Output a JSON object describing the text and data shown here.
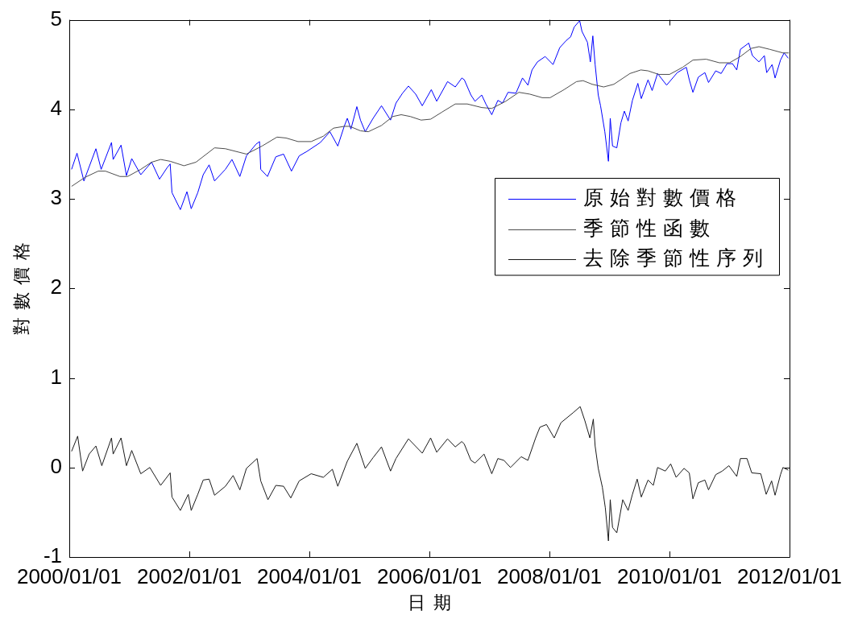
{
  "chart_data": {
    "type": "line",
    "xlabel": "日期",
    "ylabel": "對數價格",
    "legend": "right",
    "xlim": [
      "2000-01-01",
      "2012-01-01"
    ],
    "xticks": [
      {
        "value": "2000-01-01",
        "label": "2000/01/01"
      },
      {
        "value": "2002-01-01",
        "label": "2002/01/01"
      },
      {
        "value": "2004-01-01",
        "label": "2004/01/01"
      },
      {
        "value": "2006-01-01",
        "label": "2006/01/01"
      },
      {
        "value": "2008-01-01",
        "label": "2008/01/01"
      },
      {
        "value": "2010-01-01",
        "label": "2010/01/01"
      },
      {
        "value": "2012-01-01",
        "label": "2012/01/01"
      }
    ],
    "ylim": [
      -1,
      5
    ],
    "yticks": [
      -1,
      0,
      1,
      2,
      3,
      4,
      5
    ],
    "series": [
      {
        "name": "原始對數價格",
        "color": "#0000ff",
        "x": [
          "2000-01-15",
          "2000-02-17",
          "2000-03-30",
          "2000-06-11",
          "2000-07-13",
          "2000-09-14",
          "2000-09-24",
          "2000-11-11",
          "2000-12-14",
          "2001-01-15",
          "2001-03-11",
          "2001-05-16",
          "2001-07-03",
          "2001-08-19",
          "2001-09-06",
          "2001-09-17",
          "2001-11-07",
          "2001-12-17",
          "2002-01-12",
          "2002-02-21",
          "2002-03-26",
          "2002-05-01",
          "2002-06-03",
          "2002-08-08",
          "2002-09-17",
          "2002-11-04",
          "2002-12-14",
          "2003-02-10",
          "2003-03-04",
          "2003-03-11",
          "2003-04-21",
          "2003-06-11",
          "2003-07-28",
          "2003-09-14",
          "2003-10-31",
          "2003-12-17",
          "2004-03-08",
          "2004-05-05",
          "2004-06-22",
          "2004-07-31",
          "2004-08-19",
          "2004-09-10",
          "2004-10-16",
          "2004-11-07",
          "2004-12-06",
          "2005-01-23",
          "2005-03-15",
          "2005-05-09",
          "2005-06-11",
          "2005-07-21",
          "2005-08-26",
          "2005-10-09",
          "2005-11-18",
          "2006-01-12",
          "2006-02-14",
          "2006-04-21",
          "2006-06-07",
          "2006-07-17",
          "2006-08-01",
          "2006-09-10",
          "2006-10-05",
          "2006-11-15",
          "2006-12-10",
          "2007-01-15",
          "2007-02-21",
          "2007-03-22",
          "2007-04-24",
          "2007-06-11",
          "2007-07-21",
          "2007-08-23",
          "2007-09-17",
          "2007-10-20",
          "2007-12-06",
          "2008-01-23",
          "2008-03-04",
          "2008-04-13",
          "2008-05-09",
          "2008-05-31",
          "2008-07-03",
          "2008-07-17",
          "2008-08-19",
          "2008-09-06",
          "2008-09-21",
          "2008-10-05",
          "2008-10-24",
          "2008-11-07",
          "2008-12-03",
          "2008-12-25",
          "2009-01-05",
          "2009-01-19",
          "2009-02-14",
          "2009-03-11",
          "2009-04-01",
          "2009-04-24",
          "2009-05-20",
          "2009-06-22",
          "2009-07-13",
          "2009-08-23",
          "2009-09-17",
          "2009-10-20",
          "2009-12-14",
          "2010-02-17",
          "2010-04-13",
          "2010-05-01",
          "2010-05-23",
          "2010-06-25",
          "2010-08-04",
          "2010-08-26",
          "2010-10-09",
          "2010-11-11",
          "2010-12-17",
          "2011-01-19",
          "2011-02-14",
          "2011-03-08",
          "2011-04-28",
          "2011-05-20",
          "2011-06-29",
          "2011-08-01",
          "2011-08-15",
          "2011-09-17",
          "2011-10-05",
          "2011-11-07",
          "2011-11-29",
          "2011-12-25"
        ],
        "values": [
          3.33,
          3.51,
          3.2,
          3.56,
          3.33,
          3.63,
          3.44,
          3.6,
          3.26,
          3.45,
          3.27,
          3.41,
          3.22,
          3.35,
          3.39,
          3.07,
          2.88,
          3.08,
          2.89,
          3.07,
          3.27,
          3.38,
          3.2,
          3.33,
          3.44,
          3.25,
          3.48,
          3.61,
          3.64,
          3.33,
          3.25,
          3.47,
          3.5,
          3.31,
          3.48,
          3.53,
          3.63,
          3.75,
          3.59,
          3.81,
          3.9,
          3.78,
          4.03,
          3.88,
          3.75,
          3.9,
          4.04,
          3.88,
          4.07,
          4.18,
          4.26,
          4.17,
          4.04,
          4.22,
          4.09,
          4.31,
          4.25,
          4.35,
          4.33,
          4.16,
          4.09,
          4.16,
          4.06,
          3.94,
          4.1,
          4.07,
          4.19,
          4.18,
          4.35,
          4.27,
          4.44,
          4.53,
          4.59,
          4.5,
          4.69,
          4.77,
          4.81,
          4.92,
          4.99,
          4.87,
          4.75,
          4.53,
          4.82,
          4.5,
          4.16,
          4.04,
          3.75,
          3.42,
          3.9,
          3.59,
          3.57,
          3.85,
          3.98,
          3.87,
          4.1,
          4.29,
          4.12,
          4.33,
          4.21,
          4.4,
          4.27,
          4.41,
          4.47,
          4.33,
          4.19,
          4.36,
          4.41,
          4.3,
          4.43,
          4.4,
          4.51,
          4.51,
          4.44,
          4.67,
          4.74,
          4.6,
          4.53,
          4.6,
          4.41,
          4.5,
          4.35,
          4.55,
          4.63,
          4.57
        ]
      },
      {
        "name": "季節性函數",
        "color": "#4d4d4d",
        "x": [
          "2000-01-15",
          "2000-04-05",
          "2000-06-25",
          "2000-08-08",
          "2000-11-04",
          "2000-12-21",
          "2001-03-11",
          "2001-05-16",
          "2001-07-10",
          "2001-09-06",
          "2001-11-29",
          "2002-02-10",
          "2002-06-03",
          "2002-08-08",
          "2002-12-14",
          "2003-03-19",
          "2003-06-18",
          "2003-08-12",
          "2003-10-24",
          "2004-01-12",
          "2004-03-26",
          "2004-05-27",
          "2004-07-31",
          "2004-09-03",
          "2004-11-07",
          "2004-12-25",
          "2005-03-15",
          "2005-05-23",
          "2005-07-13",
          "2005-09-06",
          "2005-11-11",
          "2006-01-08",
          "2006-03-19",
          "2006-06-07",
          "2006-08-19",
          "2006-11-15",
          "2007-01-15",
          "2007-04-10",
          "2007-06-29",
          "2007-09-03",
          "2007-11-18",
          "2008-01-05",
          "2008-03-30",
          "2008-06-14",
          "2008-07-24",
          "2008-09-17",
          "2008-11-26",
          "2009-01-27",
          "2009-05-05",
          "2009-07-10",
          "2009-08-23",
          "2009-10-27",
          "2010-01-01",
          "2010-03-22",
          "2010-05-23",
          "2010-08-12",
          "2010-10-31",
          "2011-01-01",
          "2011-03-08",
          "2011-05-12",
          "2011-06-29",
          "2011-09-03",
          "2011-11-22",
          "2011-12-28"
        ],
        "values": [
          3.14,
          3.24,
          3.31,
          3.31,
          3.25,
          3.25,
          3.33,
          3.41,
          3.44,
          3.42,
          3.37,
          3.41,
          3.57,
          3.56,
          3.5,
          3.59,
          3.69,
          3.68,
          3.64,
          3.64,
          3.7,
          3.79,
          3.81,
          3.81,
          3.76,
          3.75,
          3.82,
          3.92,
          3.94,
          3.92,
          3.88,
          3.89,
          3.97,
          4.06,
          4.06,
          4.02,
          4.01,
          4.09,
          4.19,
          4.17,
          4.13,
          4.13,
          4.22,
          4.31,
          4.32,
          4.28,
          4.25,
          4.28,
          4.4,
          4.44,
          4.43,
          4.39,
          4.39,
          4.47,
          4.55,
          4.56,
          4.52,
          4.52,
          4.59,
          4.68,
          4.7,
          4.67,
          4.63,
          4.63
        ]
      },
      {
        "name": "去除季節性序列",
        "color": "#1a1a1a",
        "x": [
          "2000-01-15",
          "2000-02-21",
          "2000-03-22",
          "2000-05-01",
          "2000-06-11",
          "2000-07-17",
          "2000-09-14",
          "2000-09-24",
          "2000-11-11",
          "2000-12-14",
          "2001-01-15",
          "2001-03-11",
          "2001-05-05",
          "2001-07-10",
          "2001-09-06",
          "2001-09-17",
          "2001-11-07",
          "2001-12-25",
          "2002-01-12",
          "2002-02-21",
          "2002-03-26",
          "2002-05-01",
          "2002-06-03",
          "2002-08-08",
          "2002-09-24",
          "2002-11-04",
          "2002-12-14",
          "2003-02-17",
          "2003-03-11",
          "2003-04-24",
          "2003-06-11",
          "2003-07-28",
          "2003-09-10",
          "2003-10-31",
          "2004-01-12",
          "2004-03-26",
          "2004-05-20",
          "2004-06-22",
          "2004-08-19",
          "2004-10-16",
          "2004-12-06",
          "2005-01-23",
          "2005-03-15",
          "2005-05-09",
          "2005-06-11",
          "2005-08-26",
          "2005-11-18",
          "2006-01-08",
          "2006-02-14",
          "2006-04-21",
          "2006-06-07",
          "2006-07-17",
          "2006-08-01",
          "2006-09-10",
          "2006-10-05",
          "2006-11-29",
          "2007-01-15",
          "2007-02-21",
          "2007-03-30",
          "2007-05-09",
          "2007-07-13",
          "2007-08-23",
          "2007-10-09",
          "2007-11-04",
          "2007-12-14",
          "2008-01-30",
          "2008-03-11",
          "2008-05-23",
          "2008-07-06",
          "2008-08-04",
          "2008-09-03",
          "2008-09-24",
          "2008-10-05",
          "2008-10-24",
          "2008-11-18",
          "2008-12-06",
          "2008-12-25",
          "2009-01-05",
          "2009-01-19",
          "2009-02-14",
          "2009-03-22",
          "2009-04-24",
          "2009-05-20",
          "2009-06-18",
          "2009-07-13",
          "2009-08-23",
          "2009-09-24",
          "2009-10-20",
          "2009-12-06",
          "2010-01-08",
          "2010-02-10",
          "2010-03-30",
          "2010-05-01",
          "2010-05-23",
          "2010-06-25",
          "2010-08-04",
          "2010-08-26",
          "2010-10-09",
          "2010-11-18",
          "2010-12-28",
          "2011-02-14",
          "2011-03-08",
          "2011-04-17",
          "2011-05-16",
          "2011-07-10",
          "2011-08-12",
          "2011-09-14",
          "2011-10-05",
          "2011-11-07",
          "2011-11-22",
          "2011-12-25"
        ],
        "values": [
          0.18,
          0.35,
          -0.04,
          0.15,
          0.24,
          0.02,
          0.33,
          0.15,
          0.33,
          0.02,
          0.19,
          -0.07,
          0.0,
          -0.2,
          -0.06,
          -0.33,
          -0.48,
          -0.3,
          -0.48,
          -0.3,
          -0.14,
          -0.13,
          -0.31,
          -0.21,
          -0.09,
          -0.25,
          -0.01,
          0.1,
          -0.15,
          -0.36,
          -0.2,
          -0.21,
          -0.34,
          -0.15,
          -0.07,
          -0.11,
          -0.02,
          -0.21,
          0.07,
          0.27,
          -0.01,
          0.11,
          0.23,
          -0.04,
          0.1,
          0.32,
          0.16,
          0.33,
          0.17,
          0.32,
          0.23,
          0.29,
          0.26,
          0.08,
          0.05,
          0.15,
          -0.07,
          0.1,
          0.08,
          0.0,
          0.12,
          0.08,
          0.33,
          0.45,
          0.48,
          0.33,
          0.5,
          0.61,
          0.68,
          0.52,
          0.33,
          0.54,
          0.24,
          -0.01,
          -0.22,
          -0.45,
          -0.82,
          -0.36,
          -0.67,
          -0.73,
          -0.36,
          -0.48,
          -0.3,
          -0.13,
          -0.33,
          -0.14,
          -0.2,
          0.0,
          -0.04,
          0.04,
          -0.11,
          -0.01,
          -0.06,
          -0.35,
          -0.17,
          -0.14,
          -0.25,
          -0.08,
          -0.04,
          0.02,
          -0.1,
          0.1,
          0.1,
          -0.06,
          -0.07,
          -0.3,
          -0.15,
          -0.31,
          -0.08,
          0.0,
          -0.03
        ]
      }
    ]
  }
}
